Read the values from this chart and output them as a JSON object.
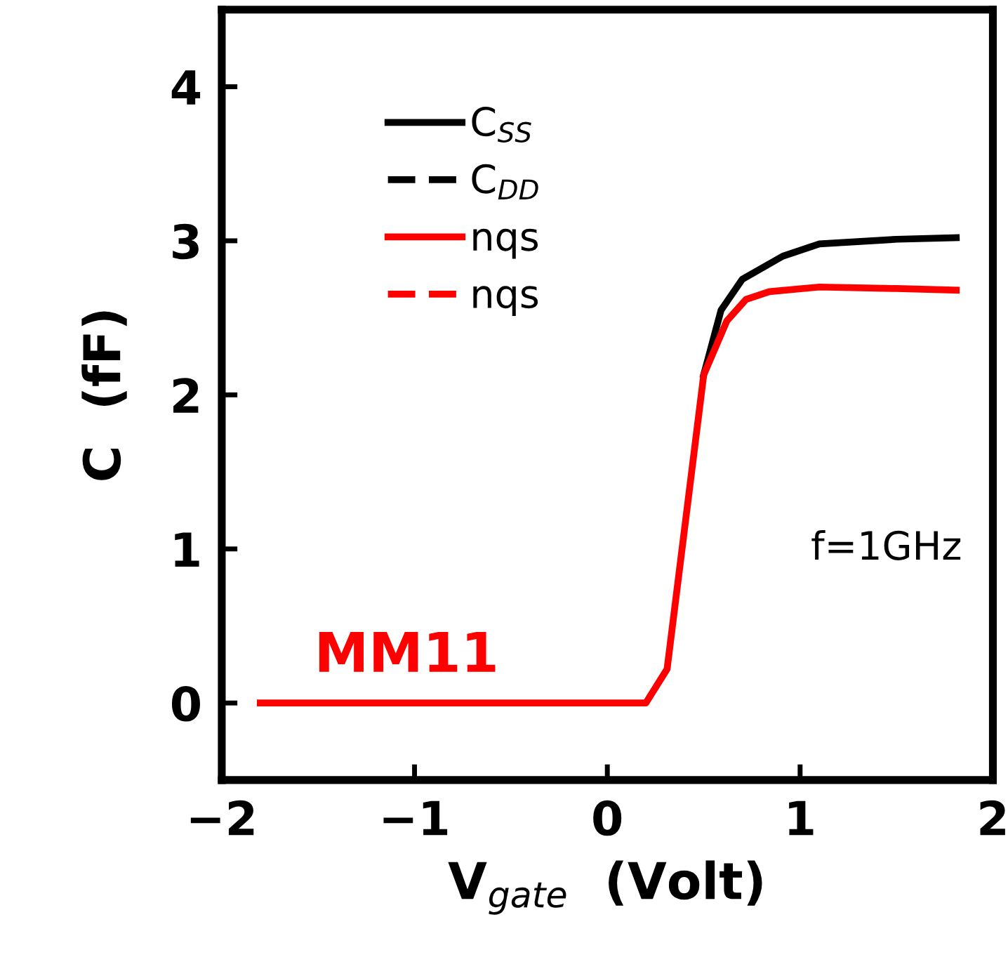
{
  "chart_data": {
    "type": "line",
    "xlabel": "V$_{gate}$  (Volt)",
    "ylabel": "C  (fF)",
    "xlim": [
      -2,
      2
    ],
    "ylim": [
      -0.5,
      4.5
    ],
    "xticks": [
      -2,
      -1,
      0,
      1,
      2
    ],
    "yticks": [
      0,
      1,
      2,
      3,
      4
    ],
    "grid": false,
    "legend": "top left",
    "marker": "none",
    "series": [
      {
        "name": "C$_{SS}$",
        "color": "#000000",
        "line_style": "solid",
        "x": [
          0.5,
          0.59,
          0.7,
          0.91,
          1.1,
          1.5,
          1.81
        ],
        "values": [
          2.13,
          2.55,
          2.75,
          2.9,
          2.98,
          3.01,
          3.02
        ]
      },
      {
        "name": "C$_{DD}$",
        "color": "#000000",
        "line_style": "dashed"
      },
      {
        "name": "nqs",
        "color": "#ff0000",
        "line_style": "solid",
        "x": [
          -1.8,
          0.2,
          0.31,
          0.5,
          0.62,
          0.72,
          0.84,
          1.1,
          1.5,
          1.81
        ],
        "values": [
          0,
          0,
          0.22,
          2.13,
          2.48,
          2.62,
          2.67,
          2.7,
          2.69,
          2.68
        ]
      },
      {
        "name": "nqs",
        "color": "#ff0000",
        "line_style": "dashed"
      }
    ],
    "annotations": [
      "f=1GHz",
      "MM11"
    ]
  }
}
